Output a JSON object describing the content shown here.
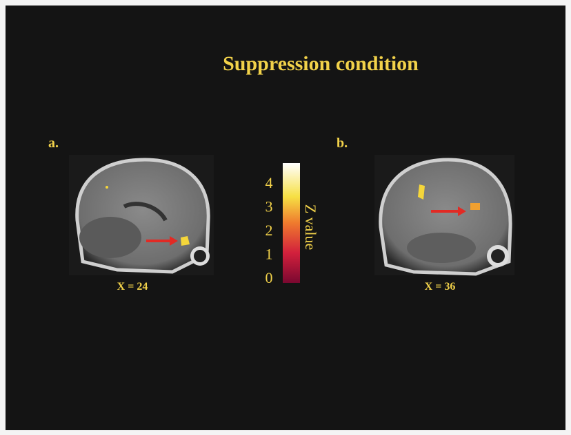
{
  "title": "Suppression condition",
  "panels": [
    {
      "letter": "a.",
      "caption": "X = 24"
    },
    {
      "letter": "b.",
      "caption": "X = 36"
    }
  ],
  "colorbar": {
    "label": "Z value",
    "ticks": [
      0,
      1,
      2,
      3,
      4
    ]
  }
}
